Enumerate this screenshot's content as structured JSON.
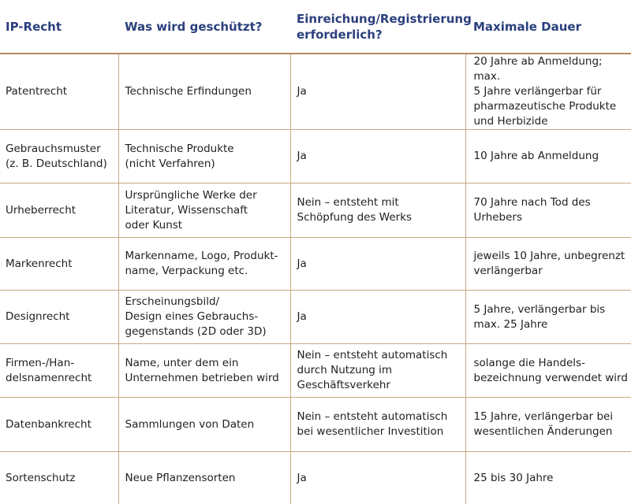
{
  "headers": [
    "IP-Recht",
    "Was wird geschützt?",
    "Einreichung/Registrierung erforderlich?",
    "Maximale Dauer"
  ],
  "rows": [
    [
      "Patentrecht",
      "Technische Erfindungen",
      "Ja",
      "20 Jahre ab Anmeldung; max.\n5 Jahre verlängerbar für\npharmazeutische Produkte\nund Herbizide"
    ],
    [
      "Gebrauchsmuster\n(z. B. Deutschland)",
      "Technische Produkte\n(nicht Verfahren)",
      "Ja",
      "10 Jahre ab Anmeldung"
    ],
    [
      "Urheberrecht",
      "Ursprüngliche Werke der\nLiteratur, Wissenschaft\noder Kunst",
      "Nein – entsteht mit\nSchöpfung des Werks",
      "70 Jahre nach Tod des\nUrhebers"
    ],
    [
      "Markenrecht",
      "Markenname, Logo, Produkt-\nname, Verpackung etc.",
      "Ja",
      "jeweils 10 Jahre, unbegrenzt\nverlängerbar"
    ],
    [
      "Designrecht",
      "Erscheinungsbild/\nDesign eines Gebrauchs-\ngegenstands (2D oder 3D)",
      "Ja",
      "5 Jahre, verlängerbar bis\nmax. 25 Jahre"
    ],
    [
      "Firmen-/Han-\ndelsnamenrecht",
      "Name, unter dem ein\nUnternehmen betrieben wird",
      "Nein – entsteht automatisch\ndurch Nutzung im\nGeschäftsverkehr",
      "solange die Handels-\nbezeichnung verwendet wird"
    ],
    [
      "Datenbankrecht",
      "Sammlungen von Daten",
      "Nein – entsteht automatisch\nbei wesentlicher Investition",
      "15 Jahre, verlängerbar bei\nwesentlichen Änderungen"
    ],
    [
      "Sortenschutz",
      "Neue Pflanzensorten",
      "Ja",
      "25 bis 30 Jahre"
    ]
  ]
}
